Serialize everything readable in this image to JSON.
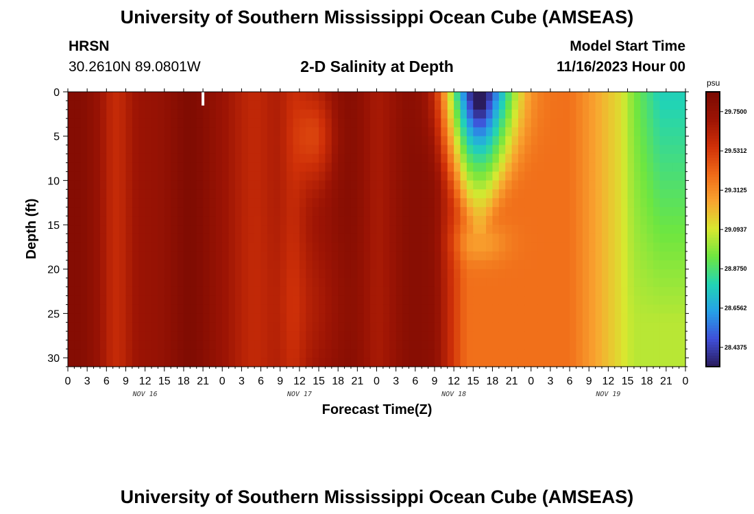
{
  "header": {
    "title": "University of Southern Mississippi Ocean Cube (AMSEAS)",
    "station": "HRSN",
    "coords": "30.2610N  89.0801W",
    "plot_title": "2-D Salinity at Depth",
    "start_label": "Model Start Time",
    "start_value": "11/16/2023 Hour 00"
  },
  "footer": {
    "title": "University of Southern Mississippi Ocean Cube (AMSEAS)"
  },
  "chart_data": {
    "type": "heatmap",
    "title": "2-D Salinity at Depth",
    "xlabel": "Forecast Time(Z)",
    "ylabel": "Depth (ft)",
    "x_range_hours": [
      0,
      96
    ],
    "ylim": [
      31,
      0
    ],
    "x_ticks": [
      "0",
      "3",
      "6",
      "9",
      "12",
      "15",
      "18",
      "21",
      "0",
      "3",
      "6",
      "9",
      "12",
      "15",
      "18",
      "21",
      "0",
      "3",
      "6",
      "9",
      "12",
      "15",
      "18",
      "21",
      "0",
      "3",
      "6",
      "9",
      "12",
      "15",
      "18",
      "21",
      "0"
    ],
    "x_tick_step_hours": 3,
    "day_labels": [
      {
        "label": "NOV 16",
        "hour": 12
      },
      {
        "label": "NOV 17",
        "hour": 36
      },
      {
        "label": "NOV 18",
        "hour": 60
      },
      {
        "label": "NOV 19",
        "hour": 84
      }
    ],
    "y_ticks": [
      0,
      5,
      10,
      15,
      20,
      25,
      30
    ],
    "current_time_marker_hour": 21,
    "colorbar": {
      "unit": "psu",
      "labels": [
        "29.7500",
        "29.5312",
        "29.3125",
        "29.0937",
        "28.8750",
        "28.6562",
        "28.4375"
      ],
      "min": 28.33,
      "max": 29.86
    },
    "colors": {
      "c0": "#2a1b5c",
      "c1": "#3f4fd8",
      "c2": "#26a0e8",
      "c3": "#22d4b4",
      "c4": "#6ee640",
      "c5": "#d8e830",
      "c6": "#f9a530",
      "c7": "#f06a18",
      "c8": "#cf3008",
      "c9": "#9c1404",
      "c10": "#7a0a02"
    }
  }
}
